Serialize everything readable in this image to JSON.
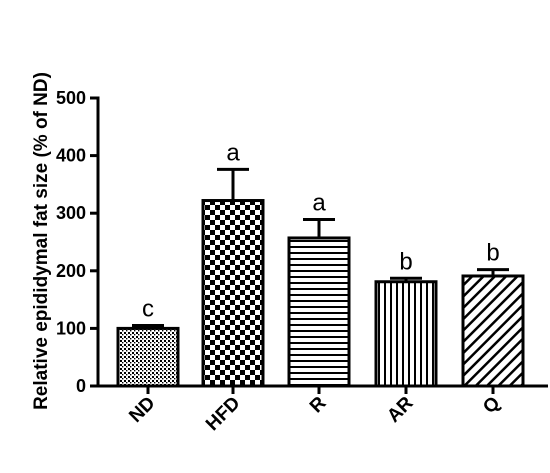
{
  "chart_data": {
    "type": "bar",
    "title": "",
    "xlabel": "",
    "ylabel": "Relative epididymal fat size (%  of ND)",
    "ylim": [
      0,
      500
    ],
    "yticks": [
      0,
      100,
      200,
      300,
      400,
      500
    ],
    "categories": [
      "ND",
      "HFD",
      "R",
      "AR",
      "Q"
    ],
    "values": [
      100,
      322,
      257,
      181,
      191
    ],
    "errors": [
      5,
      54,
      32,
      6,
      11
    ],
    "significance": [
      "c",
      "a",
      "a",
      "b",
      "b"
    ],
    "patterns": [
      "dots",
      "checker",
      "horizontal-lines",
      "vertical-lines",
      "diagonal-lines"
    ],
    "grid": false,
    "bar_color": "#ffffff",
    "pattern_color": "#000000"
  }
}
